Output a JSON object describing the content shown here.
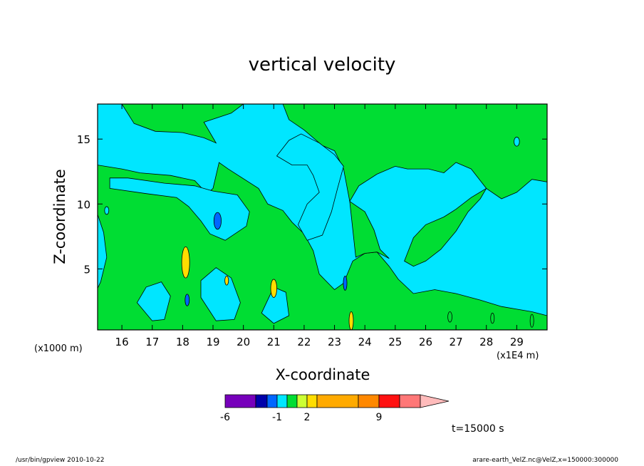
{
  "chart_data": {
    "type": "heatmap",
    "title": "vertical velocity",
    "xlabel": "X-coordinate",
    "ylabel": "Z-coordinate",
    "x_unit_label": "(x1E4 m)",
    "y_unit_label": "(x1000 m)",
    "xlim": [
      15.2,
      30.0
    ],
    "ylim": [
      0.3,
      17.7
    ],
    "x_ticks": [
      16,
      17,
      18,
      19,
      20,
      21,
      22,
      23,
      24,
      25,
      26,
      27,
      28,
      29
    ],
    "y_ticks": [
      5,
      10,
      15
    ],
    "time_label": "t=15000 s",
    "colorbar": {
      "labeled_ticks": [
        "-6",
        "-1",
        "2",
        "9"
      ],
      "levels": [
        {
          "color": "#7700bb"
        },
        {
          "color": "#0000aa"
        },
        {
          "color": "#0066ff"
        },
        {
          "color": "#00e6ff"
        },
        {
          "color": "#00dd33"
        },
        {
          "color": "#ccff33"
        },
        {
          "color": "#ffdd00"
        },
        {
          "color": "#ffaa00"
        },
        {
          "color": "#ff8800"
        },
        {
          "color": "#ff1111"
        },
        {
          "color": "#ff7777"
        },
        {
          "color": "#ffbbbb"
        }
      ]
    },
    "background_color": "#00e6ff",
    "green_regions": [
      [
        [
          15.2,
          17.7
        ],
        [
          16.0,
          17.7
        ],
        [
          16.4,
          16.2
        ],
        [
          17.1,
          15.6
        ],
        [
          18.0,
          15.5
        ],
        [
          18.7,
          15.1
        ],
        [
          19.1,
          14.7
        ],
        [
          18.7,
          16.3
        ],
        [
          19.6,
          17.0
        ],
        [
          20.0,
          17.7
        ],
        [
          21.3,
          17.7
        ],
        [
          21.5,
          16.5
        ],
        [
          22.0,
          15.7
        ],
        [
          22.6,
          14.5
        ],
        [
          23.0,
          14.1
        ],
        [
          23.3,
          12.7
        ],
        [
          23.5,
          10.2
        ],
        [
          23.8,
          11.4
        ],
        [
          24.4,
          12.3
        ],
        [
          25.0,
          12.9
        ],
        [
          25.4,
          12.7
        ],
        [
          26.1,
          12.7
        ],
        [
          26.6,
          12.4
        ],
        [
          27.0,
          13.2
        ],
        [
          27.5,
          12.7
        ],
        [
          28.0,
          11.2
        ],
        [
          28.5,
          10.4
        ],
        [
          29.0,
          10.9
        ],
        [
          29.5,
          11.9
        ],
        [
          30.0,
          11.7
        ],
        [
          30.0,
          17.7
        ]
      ],
      [
        [
          15.2,
          13.0
        ],
        [
          16.0,
          12.7
        ],
        [
          16.6,
          12.4
        ],
        [
          17.6,
          12.2
        ],
        [
          18.4,
          11.8
        ],
        [
          18.8,
          10.8
        ],
        [
          19.0,
          11.2
        ],
        [
          19.2,
          13.2
        ],
        [
          19.5,
          12.7
        ],
        [
          20.5,
          11.2
        ],
        [
          20.8,
          10.0
        ],
        [
          21.3,
          9.5
        ],
        [
          21.6,
          8.6
        ],
        [
          22.0,
          7.7
        ],
        [
          22.3,
          6.4
        ],
        [
          22.5,
          4.6
        ],
        [
          23.0,
          3.4
        ],
        [
          23.3,
          3.9
        ],
        [
          23.6,
          5.6
        ],
        [
          24.0,
          6.2
        ],
        [
          24.4,
          6.3
        ],
        [
          24.8,
          5.2
        ],
        [
          25.1,
          4.2
        ],
        [
          25.6,
          3.1
        ],
        [
          26.3,
          3.4
        ],
        [
          27.0,
          3.1
        ],
        [
          27.8,
          2.6
        ],
        [
          28.5,
          2.1
        ],
        [
          29.0,
          1.9
        ],
        [
          29.5,
          1.7
        ],
        [
          30.0,
          1.4
        ],
        [
          30.0,
          0.3
        ],
        [
          15.2,
          0.3
        ]
      ]
    ],
    "cyan_islands": [
      [
        [
          15.6,
          11.2
        ],
        [
          16.8,
          10.8
        ],
        [
          17.8,
          10.5
        ],
        [
          18.2,
          9.8
        ],
        [
          18.6,
          8.7
        ],
        [
          18.9,
          7.7
        ],
        [
          19.4,
          7.2
        ],
        [
          20.1,
          8.3
        ],
        [
          20.2,
          9.4
        ],
        [
          19.8,
          10.7
        ],
        [
          19.0,
          11.0
        ],
        [
          18.4,
          11.4
        ],
        [
          17.4,
          11.6
        ],
        [
          16.2,
          12.0
        ],
        [
          15.6,
          12.0
        ]
      ],
      [
        [
          21.1,
          13.7
        ],
        [
          21.6,
          13.0
        ],
        [
          22.1,
          13.0
        ],
        [
          22.3,
          12.2
        ],
        [
          22.5,
          10.9
        ],
        [
          22.1,
          10.0
        ],
        [
          21.8,
          8.4
        ],
        [
          22.1,
          7.2
        ],
        [
          22.6,
          7.6
        ],
        [
          22.9,
          9.4
        ],
        [
          23.1,
          11.2
        ],
        [
          23.3,
          12.9
        ],
        [
          23.0,
          13.8
        ],
        [
          22.5,
          14.7
        ],
        [
          21.9,
          15.4
        ],
        [
          21.5,
          14.9
        ]
      ],
      [
        [
          16.5,
          2.4
        ],
        [
          17.0,
          1.0
        ],
        [
          17.4,
          1.1
        ],
        [
          17.6,
          2.9
        ],
        [
          17.3,
          4.0
        ],
        [
          16.8,
          3.6
        ]
      ],
      [
        [
          18.6,
          2.8
        ],
        [
          19.1,
          1.0
        ],
        [
          19.7,
          1.1
        ],
        [
          19.9,
          2.4
        ],
        [
          19.6,
          4.3
        ],
        [
          19.1,
          5.1
        ],
        [
          18.6,
          4.1
        ]
      ],
      [
        [
          20.6,
          1.6
        ],
        [
          21.0,
          0.8
        ],
        [
          21.5,
          1.4
        ],
        [
          21.4,
          3.2
        ],
        [
          21.0,
          3.6
        ]
      ],
      [
        [
          15.2,
          9.2
        ],
        [
          15.4,
          7.8
        ],
        [
          15.5,
          5.9
        ],
        [
          15.3,
          4.0
        ],
        [
          15.2,
          3.5
        ]
      ]
    ],
    "green_patches": [
      [
        [
          25.3,
          5.6
        ],
        [
          25.6,
          7.4
        ],
        [
          26.0,
          8.4
        ],
        [
          26.6,
          9.0
        ],
        [
          27.0,
          9.6
        ],
        [
          27.5,
          10.5
        ],
        [
          28.0,
          11.2
        ],
        [
          27.8,
          10.4
        ],
        [
          27.4,
          9.4
        ],
        [
          27.0,
          7.9
        ],
        [
          26.5,
          6.5
        ],
        [
          26.0,
          5.6
        ],
        [
          25.6,
          5.2
        ]
      ],
      [
        [
          23.5,
          10.2
        ],
        [
          24.0,
          9.4
        ],
        [
          24.3,
          8.0
        ],
        [
          24.5,
          6.5
        ],
        [
          24.8,
          5.8
        ],
        [
          24.4,
          6.3
        ],
        [
          24.0,
          6.2
        ],
        [
          23.7,
          5.9
        ]
      ]
    ],
    "cells": [
      {
        "x": 18.1,
        "z": 5.5,
        "rx": 0.13,
        "rz": 1.2,
        "color": "#ffdd00"
      },
      {
        "x": 21.0,
        "z": 3.5,
        "rx": 0.1,
        "rz": 0.7,
        "color": "#ffdd00"
      },
      {
        "x": 23.55,
        "z": 1.0,
        "rx": 0.07,
        "rz": 0.7,
        "color": "#ffdd00"
      },
      {
        "x": 19.15,
        "z": 8.7,
        "rx": 0.12,
        "rz": 0.65,
        "color": "#0066ff"
      },
      {
        "x": 18.15,
        "z": 2.6,
        "rx": 0.07,
        "rz": 0.45,
        "color": "#0066ff"
      },
      {
        "x": 23.35,
        "z": 3.9,
        "rx": 0.06,
        "rz": 0.55,
        "color": "#0066ff"
      },
      {
        "x": 19.45,
        "z": 4.1,
        "rx": 0.06,
        "rz": 0.35,
        "color": "#ffdd00"
      },
      {
        "x": 29.0,
        "z": 14.8,
        "rx": 0.09,
        "rz": 0.35,
        "color": "#00e6ff"
      },
      {
        "x": 15.5,
        "z": 9.5,
        "rx": 0.07,
        "rz": 0.3,
        "color": "#00e6ff"
      },
      {
        "x": 29.5,
        "z": 1.0,
        "rx": 0.06,
        "rz": 0.5,
        "color": "#00dd33"
      },
      {
        "x": 28.2,
        "z": 1.2,
        "rx": 0.06,
        "rz": 0.4,
        "color": "#00dd33"
      },
      {
        "x": 26.8,
        "z": 1.3,
        "rx": 0.07,
        "rz": 0.4,
        "color": "#00dd33"
      }
    ]
  },
  "footer": {
    "left": "/usr/bin/gpview   2010-10-22",
    "right": "arare-earth_VelZ.nc@VelZ,x=150000:300000"
  }
}
